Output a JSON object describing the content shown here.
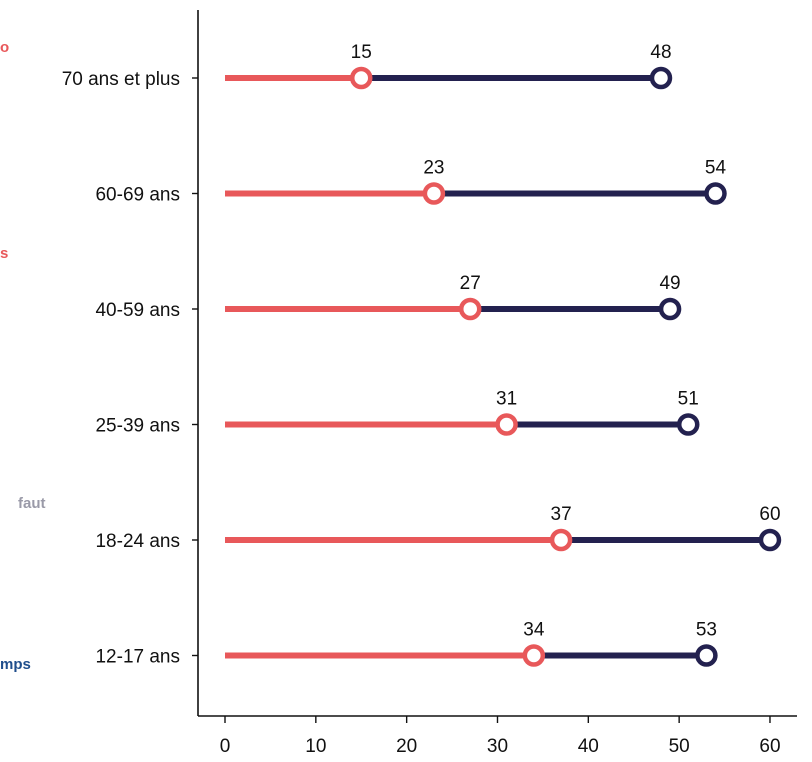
{
  "chart_data": {
    "type": "dumbbell",
    "categories": [
      "70 ans et plus",
      "60-69 ans",
      "40-59 ans",
      "25-39 ans",
      "18-24 ans",
      "12-17 ans"
    ],
    "series": [
      {
        "values": [
          15,
          23,
          27,
          31,
          37,
          34
        ],
        "color": "#e8585a"
      },
      {
        "values": [
          48,
          54,
          49,
          51,
          60,
          53
        ],
        "color": "#23214f"
      }
    ],
    "xticks": [
      0,
      10,
      20,
      30,
      40,
      50,
      60
    ],
    "xlim": [
      0,
      60
    ],
    "title": "",
    "xlabel": "",
    "ylabel": "",
    "grid": false,
    "legend": "none"
  },
  "edge_fragments": [
    {
      "text": "o",
      "color": "#e8585a"
    },
    {
      "text": "s",
      "color": "#e8585a"
    },
    {
      "text": "faut",
      "color": "#9a9aa8"
    },
    {
      "text": "mps",
      "color": "#1f4e8c"
    }
  ]
}
